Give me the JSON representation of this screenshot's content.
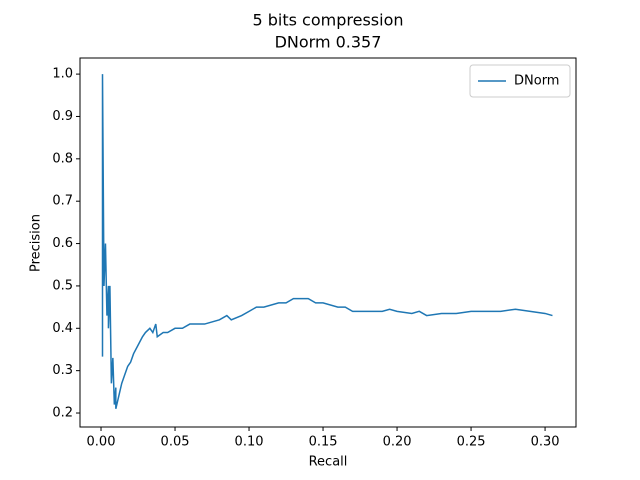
{
  "chart_data": {
    "type": "line",
    "title": "5 bits compression",
    "subtitle": "DNorm 0.357",
    "x_label": "Recall",
    "y_label": "Precision",
    "xlim": [
      -0.0142,
      0.3209
    ],
    "ylim": [
      0.167,
      1.038
    ],
    "xticks": [
      {
        "value": 0,
        "label": "0.00"
      },
      {
        "value": 0.05,
        "label": "0.05"
      },
      {
        "value": 0.1,
        "label": "0.10"
      },
      {
        "value": 0.15,
        "label": "0.15"
      },
      {
        "value": 0.2,
        "label": "0.20"
      },
      {
        "value": 0.25,
        "label": "0.25"
      },
      {
        "value": 0.3,
        "label": "0.30"
      }
    ],
    "yticks": [
      0.2,
      0.3,
      0.4,
      0.5,
      0.6,
      0.7,
      0.8,
      0.9,
      {
        "value": 1,
        "label": "1.0"
      }
    ],
    "legend": "upper right",
    "grid": false,
    "series": [
      {
        "name": "DNorm",
        "color": "#1f77b4",
        "x": [
          0.001,
          0.001,
          0.002,
          0.003,
          0.004,
          0.005,
          0.005,
          0.006,
          0.007,
          0.008,
          0.009,
          0.01,
          0.01,
          0.012,
          0.014,
          0.016,
          0.018,
          0.02,
          0.022,
          0.025,
          0.028,
          0.03,
          0.033,
          0.035,
          0.037,
          0.038,
          0.042,
          0.045,
          0.05,
          0.055,
          0.06,
          0.065,
          0.07,
          0.08,
          0.085,
          0.088,
          0.095,
          0.1,
          0.105,
          0.11,
          0.12,
          0.125,
          0.13,
          0.135,
          0.14,
          0.145,
          0.15,
          0.16,
          0.165,
          0.17,
          0.18,
          0.19,
          0.195,
          0.2,
          0.21,
          0.215,
          0.22,
          0.23,
          0.24,
          0.25,
          0.26,
          0.27,
          0.28,
          0.29,
          0.3,
          0.305
        ],
        "values": [
          0.333,
          1.0,
          0.5,
          0.6,
          0.43,
          0.5,
          0.4,
          0.5,
          0.27,
          0.33,
          0.22,
          0.26,
          0.21,
          0.24,
          0.27,
          0.29,
          0.31,
          0.32,
          0.34,
          0.36,
          0.38,
          0.39,
          0.4,
          0.39,
          0.41,
          0.38,
          0.39,
          0.39,
          0.4,
          0.4,
          0.41,
          0.41,
          0.41,
          0.42,
          0.43,
          0.42,
          0.43,
          0.44,
          0.45,
          0.45,
          0.46,
          0.46,
          0.47,
          0.47,
          0.47,
          0.46,
          0.46,
          0.45,
          0.45,
          0.44,
          0.44,
          0.44,
          0.445,
          0.44,
          0.435,
          0.44,
          0.43,
          0.435,
          0.435,
          0.44,
          0.44,
          0.44,
          0.445,
          0.44,
          0.435,
          0.43
        ]
      }
    ]
  }
}
